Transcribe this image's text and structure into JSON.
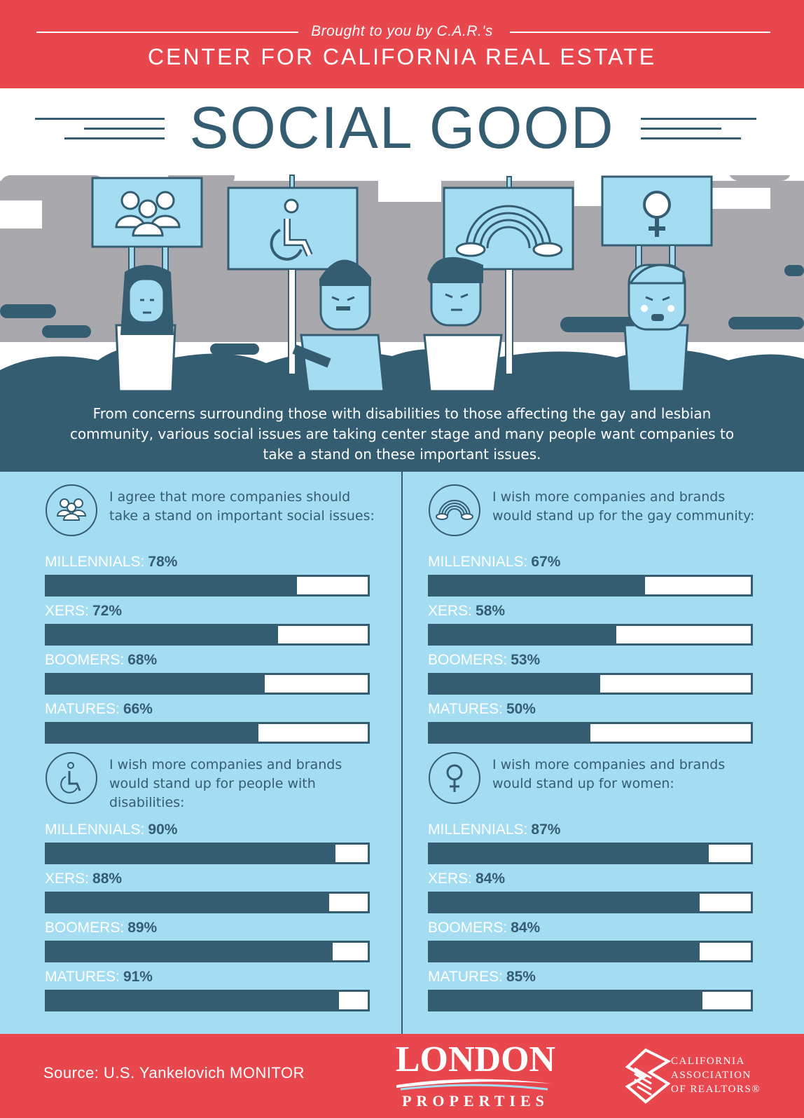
{
  "header": {
    "brought_by": "Brought to you by C.A.R.'s",
    "center_name": "CENTER FOR CALIFORNIA REAL ESTATE"
  },
  "title": "SOCIAL GOOD",
  "intro": "From concerns surrounding those with disabilities to those affecting the gay and lesbian community, various social issues are taking center stage and many people want companies to take a stand on these important issues.",
  "colors": {
    "header_red": "#e8484d",
    "navy": "#355d72",
    "light_blue": "#a4dcf2",
    "cloud_gray": "#a9a8ad",
    "white": "#ffffff"
  },
  "chart_data": [
    {
      "type": "bar",
      "orientation": "horizontal",
      "icon": "people-group-icon",
      "title": "I agree that more companies should take a stand on important social issues:",
      "categories": [
        "MILLENNIALS:",
        "XERS:",
        "BOOMERS:",
        "MATURES:"
      ],
      "values": [
        78,
        72,
        68,
        66
      ],
      "labels": [
        "78%",
        "72%",
        "68%",
        "66%"
      ],
      "xlim": [
        0,
        100
      ]
    },
    {
      "type": "bar",
      "orientation": "horizontal",
      "icon": "rainbow-icon",
      "title": "I wish more companies and brands would stand up for the gay community:",
      "categories": [
        "MILLENNIALS:",
        "XERS:",
        "BOOMERS:",
        "MATURES:"
      ],
      "values": [
        67,
        58,
        53,
        50
      ],
      "labels": [
        "67%",
        "58%",
        "53%",
        "50%"
      ],
      "xlim": [
        0,
        100
      ]
    },
    {
      "type": "bar",
      "orientation": "horizontal",
      "icon": "wheelchair-icon",
      "title": "I wish more companies and brands would stand up for people with disabilities:",
      "categories": [
        "MILLENNIALS:",
        "XERS:",
        "BOOMERS:",
        "MATURES:"
      ],
      "values": [
        90,
        88,
        89,
        91
      ],
      "labels": [
        "90%",
        "88%",
        "89%",
        "91%"
      ],
      "xlim": [
        0,
        100
      ]
    },
    {
      "type": "bar",
      "orientation": "horizontal",
      "icon": "female-symbol-icon",
      "title": "I wish more companies and brands would stand up for women:",
      "categories": [
        "MILLENNIALS:",
        "XERS:",
        "BOOMERS:",
        "MATURES:"
      ],
      "values": [
        87,
        84,
        84,
        85
      ],
      "labels": [
        "87%",
        "84%",
        "84%",
        "85%"
      ],
      "xlim": [
        0,
        100
      ]
    }
  ],
  "footer": {
    "source": "Source: U.S. Yankelovich MONITOR",
    "london_logo": "LONDON",
    "london_sub": "PROPERTIES",
    "car_lines": [
      "CALIFORNIA",
      "ASSOCIATION",
      "OF REALTORS®"
    ]
  }
}
